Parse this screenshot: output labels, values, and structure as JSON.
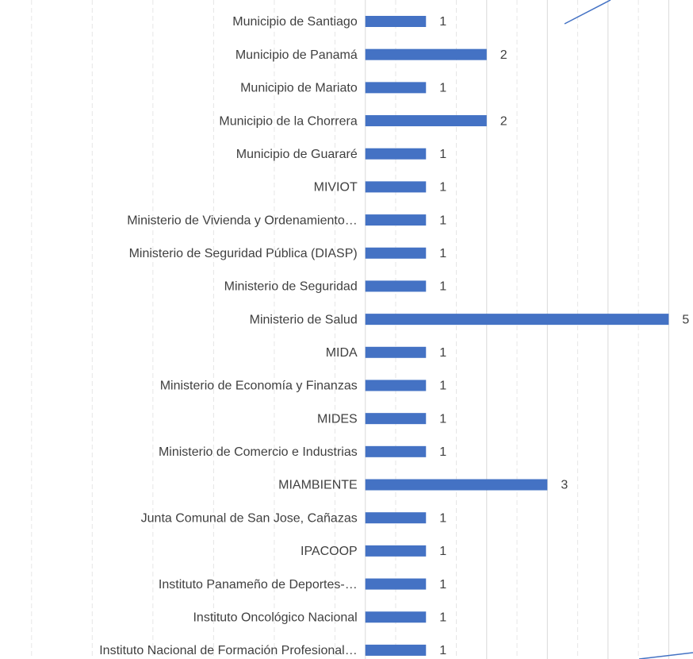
{
  "chart_data": {
    "type": "bar",
    "orientation": "horizontal",
    "categories": [
      "Municipio de Santiago",
      "Municipio de Panamá",
      "Municipio de Mariato",
      "Municipio de la Chorrera",
      "Municipio de Guararé",
      "MIVIOT",
      "Ministerio de Vivienda y Ordenamiento…",
      "Ministerio de Seguridad Pública (DIASP)",
      "Ministerio de Seguridad",
      "Ministerio de Salud",
      "MIDA",
      "Ministerio de Economía y Finanzas",
      "MIDES",
      "Ministerio de Comercio e Industrias",
      "MIAMBIENTE",
      "Junta Comunal de San Jose, Cañazas",
      "IPACOOP",
      "Instituto Panameño de Deportes-…",
      "Instituto Oncológico Nacional",
      "Instituto Nacional de Formación Profesional…"
    ],
    "values": [
      1,
      2,
      1,
      2,
      1,
      1,
      1,
      1,
      1,
      5,
      1,
      1,
      1,
      1,
      3,
      1,
      1,
      1,
      1,
      1
    ],
    "color": "#4472c4",
    "xlim": [
      -6.02,
      5.4
    ],
    "xticks": [
      -5.5,
      -4.5,
      -3.5,
      -2.5,
      -1.5,
      -0.5,
      0.5,
      1.5,
      2,
      2.5,
      3,
      3.5,
      4,
      4.5,
      5
    ],
    "grid": true
  }
}
